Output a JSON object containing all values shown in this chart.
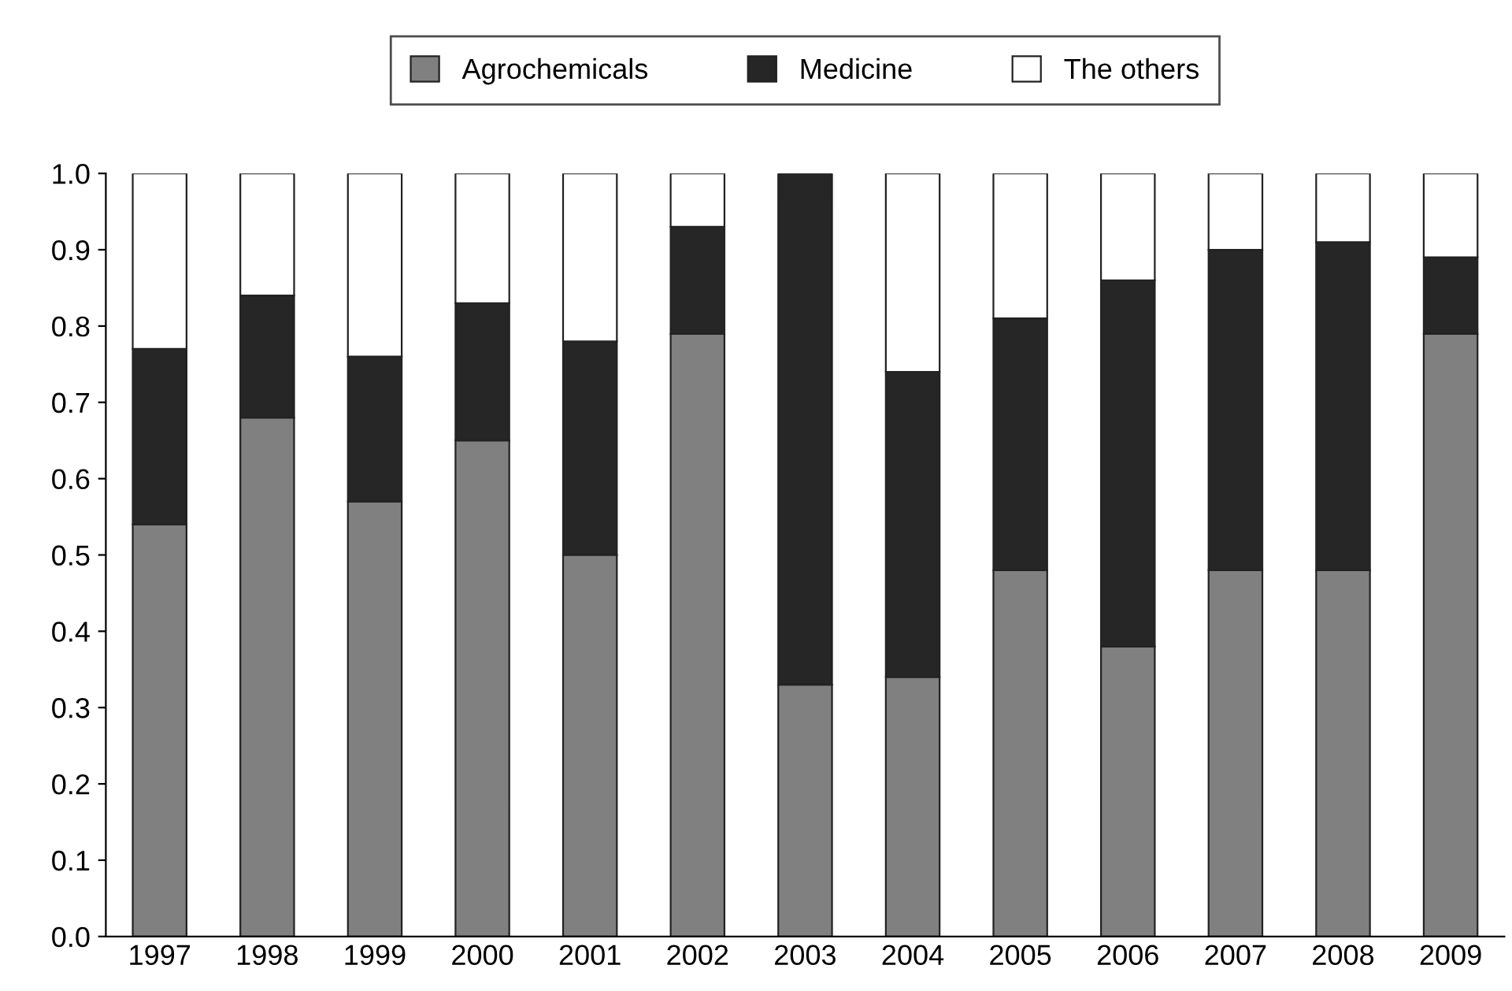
{
  "chart_data": {
    "type": "bar",
    "stacked": true,
    "categories": [
      "1997",
      "1998",
      "1999",
      "2000",
      "2001",
      "2002",
      "2003",
      "2004",
      "2005",
      "2006",
      "2007",
      "2008",
      "2009"
    ],
    "series": [
      {
        "name": "Agrochemicals",
        "color": "#808080",
        "values": [
          0.54,
          0.68,
          0.57,
          0.65,
          0.5,
          0.79,
          0.33,
          0.34,
          0.48,
          0.38,
          0.48,
          0.48,
          0.79
        ]
      },
      {
        "name": "Medicine",
        "color": "#262626",
        "values": [
          0.23,
          0.16,
          0.19,
          0.18,
          0.28,
          0.14,
          0.67,
          0.4,
          0.33,
          0.48,
          0.42,
          0.43,
          0.1
        ]
      },
      {
        "name": "The others",
        "color": "#ffffff",
        "values": [
          0.23,
          0.16,
          0.24,
          0.17,
          0.22,
          0.07,
          null,
          0.26,
          0.19,
          0.14,
          0.1,
          0.09,
          0.11
        ]
      }
    ],
    "ylim": [
      0,
      1.0
    ],
    "yticks": [
      {
        "value": 0,
        "label": "0.0"
      },
      {
        "value": 0.1,
        "label": "0.1"
      },
      {
        "value": 0.2,
        "label": "0.2"
      },
      {
        "value": 0.3,
        "label": "0.3"
      },
      {
        "value": 0.4,
        "label": "0.4"
      },
      {
        "value": 0.5,
        "label": "0.5"
      },
      {
        "value": 0.6,
        "label": "0.6"
      },
      {
        "value": 0.7,
        "label": "0.7"
      },
      {
        "value": 0.8,
        "label": "0.8"
      },
      {
        "value": 0.9,
        "label": "0.9"
      },
      {
        "value": 1.0,
        "label": "1.0"
      }
    ],
    "grid": false,
    "legend": "top"
  }
}
